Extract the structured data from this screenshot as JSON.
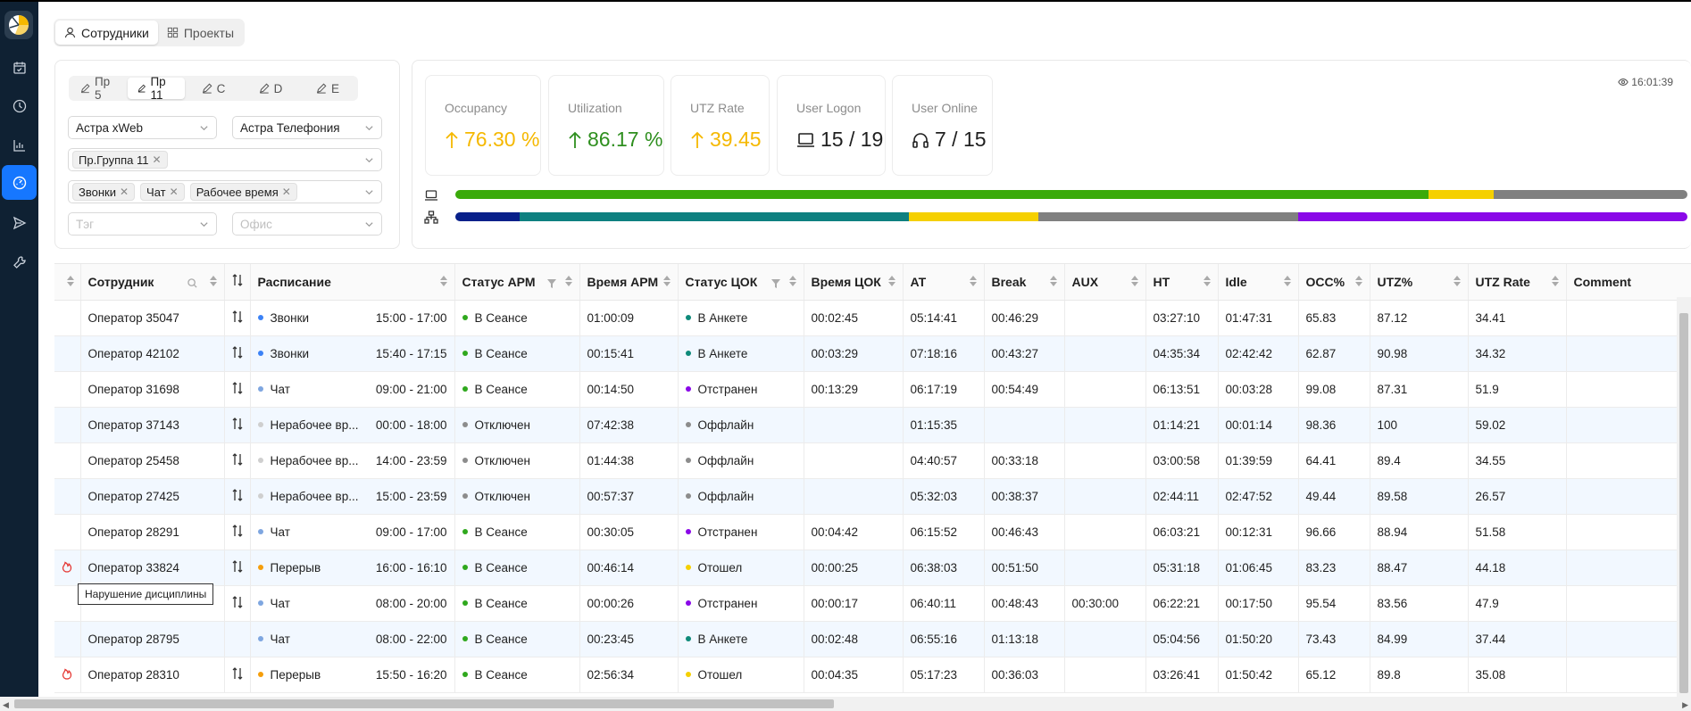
{
  "top_tabs": [
    {
      "label": "Сотрудники",
      "icon": "user-icon"
    },
    {
      "label": "Проекты",
      "icon": "grid-icon"
    }
  ],
  "profile_tabs": [
    "Пр 5",
    "Пр 11",
    "С",
    "D",
    "E"
  ],
  "filters": {
    "project": "Астра xWeb",
    "telephony": "Астра Телефония",
    "groups": [
      "Пр.Группа 11"
    ],
    "activities": [
      "Звонки",
      "Чат",
      "Рабочее время"
    ],
    "tag_placeholder": "Тэг",
    "office_placeholder": "Офис"
  },
  "time": "16:01:39",
  "stats": [
    {
      "label": "Occupancy",
      "value": "76.30 %",
      "icon": "arrow-up-icon",
      "color": "#f5b800"
    },
    {
      "label": "Utilization",
      "value": "86.17 %",
      "icon": "arrow-up-icon",
      "color": "#2f8f1f"
    },
    {
      "label": "UTZ Rate",
      "value": "39.45",
      "icon": "arrow-up-icon",
      "color": "#f5b800"
    },
    {
      "label": "User Logon",
      "value": "15 / 19",
      "icon": "laptop-icon",
      "color": "#1f1f1f"
    },
    {
      "label": "User Online",
      "value": "7 / 15",
      "icon": "headset-icon",
      "color": "#1f1f1f"
    }
  ],
  "bars": {
    "laptop": [
      {
        "color": "#3aaa0a",
        "pct": 0.79
      },
      {
        "color": "#f5d000",
        "pct": 0.053
      },
      {
        "color": "#808080",
        "pct": 0.157
      }
    ],
    "network": [
      {
        "color": "#08208a",
        "pct": 0.052
      },
      {
        "color": "#0e8080",
        "pct": 0.316
      },
      {
        "color": "#f5d000",
        "pct": 0.105
      },
      {
        "color": "#808080",
        "pct": 0.211
      },
      {
        "color": "#8a08e8",
        "pct": 0.316
      }
    ]
  },
  "columns": [
    "",
    "Сотрудник",
    "",
    "Расписание",
    "Статус АРМ",
    "Время АРМ",
    "Статус ЦОК",
    "Время ЦОК",
    "AT",
    "Break",
    "AUX",
    "HT",
    "Idle",
    "OCC%",
    "UTZ%",
    "UTZ Rate",
    "Comment"
  ],
  "status_colors": {
    "green": "#2fa81d",
    "gray": "#8c8c8c",
    "teal": "#0e8a7a",
    "purple": "#8a08e8",
    "yellow": "#f5d000",
    "blue": "#3b82f6",
    "lightblue": "#7ea6e0",
    "lightgray": "#cfcfcf",
    "orange": "#f59e0b"
  },
  "rows": [
    {
      "alert": false,
      "name": "Оператор 35047",
      "swap": true,
      "sched": "Звонки",
      "sched_dot": "blue",
      "sched_time": "15:00 - 17:00",
      "arm": "В Сеансе",
      "arm_dot": "green",
      "arm_time": "01:00:09",
      "cok": "В Анкете",
      "cok_dot": "teal",
      "cok_time": "00:02:45",
      "at": "05:14:41",
      "brk": "00:46:29",
      "aux": "",
      "ht": "03:27:10",
      "idle": "01:47:31",
      "occ": "65.83",
      "utz": "87.12",
      "rate": "34.41",
      "comment": ""
    },
    {
      "alert": false,
      "name": "Оператор 42102",
      "swap": true,
      "sched": "Звонки",
      "sched_dot": "blue",
      "sched_time": "15:40 - 17:15",
      "arm": "В Сеансе",
      "arm_dot": "green",
      "arm_time": "00:15:41",
      "cok": "В Анкете",
      "cok_dot": "teal",
      "cok_time": "00:03:29",
      "at": "07:18:16",
      "brk": "00:43:27",
      "aux": "",
      "ht": "04:35:34",
      "idle": "02:42:42",
      "occ": "62.87",
      "utz": "90.98",
      "rate": "34.32",
      "comment": ""
    },
    {
      "alert": false,
      "name": "Оператор 31698",
      "swap": true,
      "sched": "Чат",
      "sched_dot": "lightblue",
      "sched_time": "09:00 - 21:00",
      "arm": "В Сеансе",
      "arm_dot": "green",
      "arm_time": "00:14:50",
      "cok": "Отстранен",
      "cok_dot": "purple",
      "cok_time": "00:13:29",
      "at": "06:17:19",
      "brk": "00:54:49",
      "aux": "",
      "ht": "06:13:51",
      "idle": "00:03:28",
      "occ": "99.08",
      "utz": "87.31",
      "rate": "51.9",
      "comment": ""
    },
    {
      "alert": false,
      "name": "Оператор 37143",
      "swap": true,
      "sched": "Нерабочее вр...",
      "sched_dot": "lightgray",
      "sched_time": "00:00 - 18:00",
      "arm": "Отключен",
      "arm_dot": "gray",
      "arm_time": "07:42:38",
      "cok": "Оффлайн",
      "cok_dot": "gray",
      "cok_time": "",
      "at": "01:15:35",
      "brk": "",
      "aux": "",
      "ht": "01:14:21",
      "idle": "00:01:14",
      "occ": "98.36",
      "utz": "100",
      "rate": "59.02",
      "comment": ""
    },
    {
      "alert": false,
      "name": "Оператор 25458",
      "swap": true,
      "sched": "Нерабочее вр...",
      "sched_dot": "lightgray",
      "sched_time": "14:00 - 23:59",
      "arm": "Отключен",
      "arm_dot": "gray",
      "arm_time": "01:44:38",
      "cok": "Оффлайн",
      "cok_dot": "gray",
      "cok_time": "",
      "at": "04:40:57",
      "brk": "00:33:18",
      "aux": "",
      "ht": "03:00:58",
      "idle": "01:39:59",
      "occ": "64.41",
      "utz": "89.4",
      "rate": "34.55",
      "comment": ""
    },
    {
      "alert": false,
      "name": "Оператор 27425",
      "swap": true,
      "sched": "Нерабочее вр...",
      "sched_dot": "lightgray",
      "sched_time": "15:00 - 23:59",
      "arm": "Отключен",
      "arm_dot": "gray",
      "arm_time": "00:57:37",
      "cok": "Оффлайн",
      "cok_dot": "gray",
      "cok_time": "",
      "at": "05:32:03",
      "brk": "00:38:37",
      "aux": "",
      "ht": "02:44:11",
      "idle": "02:47:52",
      "occ": "49.44",
      "utz": "89.58",
      "rate": "26.57",
      "comment": ""
    },
    {
      "alert": false,
      "name": "Оператор 28291",
      "swap": true,
      "sched": "Чат",
      "sched_dot": "lightblue",
      "sched_time": "09:00 - 17:00",
      "arm": "В Сеансе",
      "arm_dot": "green",
      "arm_time": "00:30:05",
      "cok": "Отстранен",
      "cok_dot": "purple",
      "cok_time": "00:04:42",
      "at": "06:15:52",
      "brk": "00:46:43",
      "aux": "",
      "ht": "06:03:21",
      "idle": "00:12:31",
      "occ": "96.66",
      "utz": "88.94",
      "rate": "51.58",
      "comment": ""
    },
    {
      "alert": true,
      "name": "Оператор 33824",
      "swap": true,
      "sched": "Перерыв",
      "sched_dot": "orange",
      "sched_time": "16:00 - 16:10",
      "arm": "В Сеансе",
      "arm_dot": "green",
      "arm_time": "00:46:14",
      "cok": "Отошел",
      "cok_dot": "yellow",
      "cok_time": "00:00:25",
      "at": "06:38:03",
      "brk": "00:51:50",
      "aux": "",
      "ht": "05:31:18",
      "idle": "01:06:45",
      "occ": "83.23",
      "utz": "88.47",
      "rate": "44.18",
      "comment": ""
    },
    {
      "alert": false,
      "name": "",
      "swap": true,
      "sched": "Чат",
      "sched_dot": "lightblue",
      "sched_time": "08:00 - 20:00",
      "arm": "В Сеансе",
      "arm_dot": "green",
      "arm_time": "00:00:26",
      "cok": "Отстранен",
      "cok_dot": "purple",
      "cok_time": "00:00:17",
      "at": "06:40:11",
      "brk": "00:48:43",
      "aux": "00:30:00",
      "ht": "06:22:21",
      "idle": "00:17:50",
      "occ": "95.54",
      "utz": "83.56",
      "rate": "47.9",
      "comment": ""
    },
    {
      "alert": false,
      "name": "Оператор 28795",
      "swap": false,
      "sched": "Чат",
      "sched_dot": "lightblue",
      "sched_time": "08:00 - 22:00",
      "arm": "В Сеансе",
      "arm_dot": "green",
      "arm_time": "00:23:45",
      "cok": "В Анкете",
      "cok_dot": "teal",
      "cok_time": "00:02:48",
      "at": "06:55:16",
      "brk": "01:13:18",
      "aux": "",
      "ht": "05:04:56",
      "idle": "01:50:20",
      "occ": "73.43",
      "utz": "84.99",
      "rate": "37.44",
      "comment": ""
    },
    {
      "alert": true,
      "name": "Оператор 28310",
      "swap": true,
      "sched": "Перерыв",
      "sched_dot": "orange",
      "sched_time": "15:50 - 16:20",
      "arm": "В Сеансе",
      "arm_dot": "green",
      "arm_time": "02:56:34",
      "cok": "Отошел",
      "cok_dot": "yellow",
      "cok_time": "00:04:35",
      "at": "05:17:23",
      "brk": "00:36:03",
      "aux": "",
      "ht": "03:26:41",
      "idle": "01:50:42",
      "occ": "65.12",
      "utz": "89.8",
      "rate": "35.08",
      "comment": ""
    }
  ],
  "tooltip": "Нарушение дисциплины"
}
